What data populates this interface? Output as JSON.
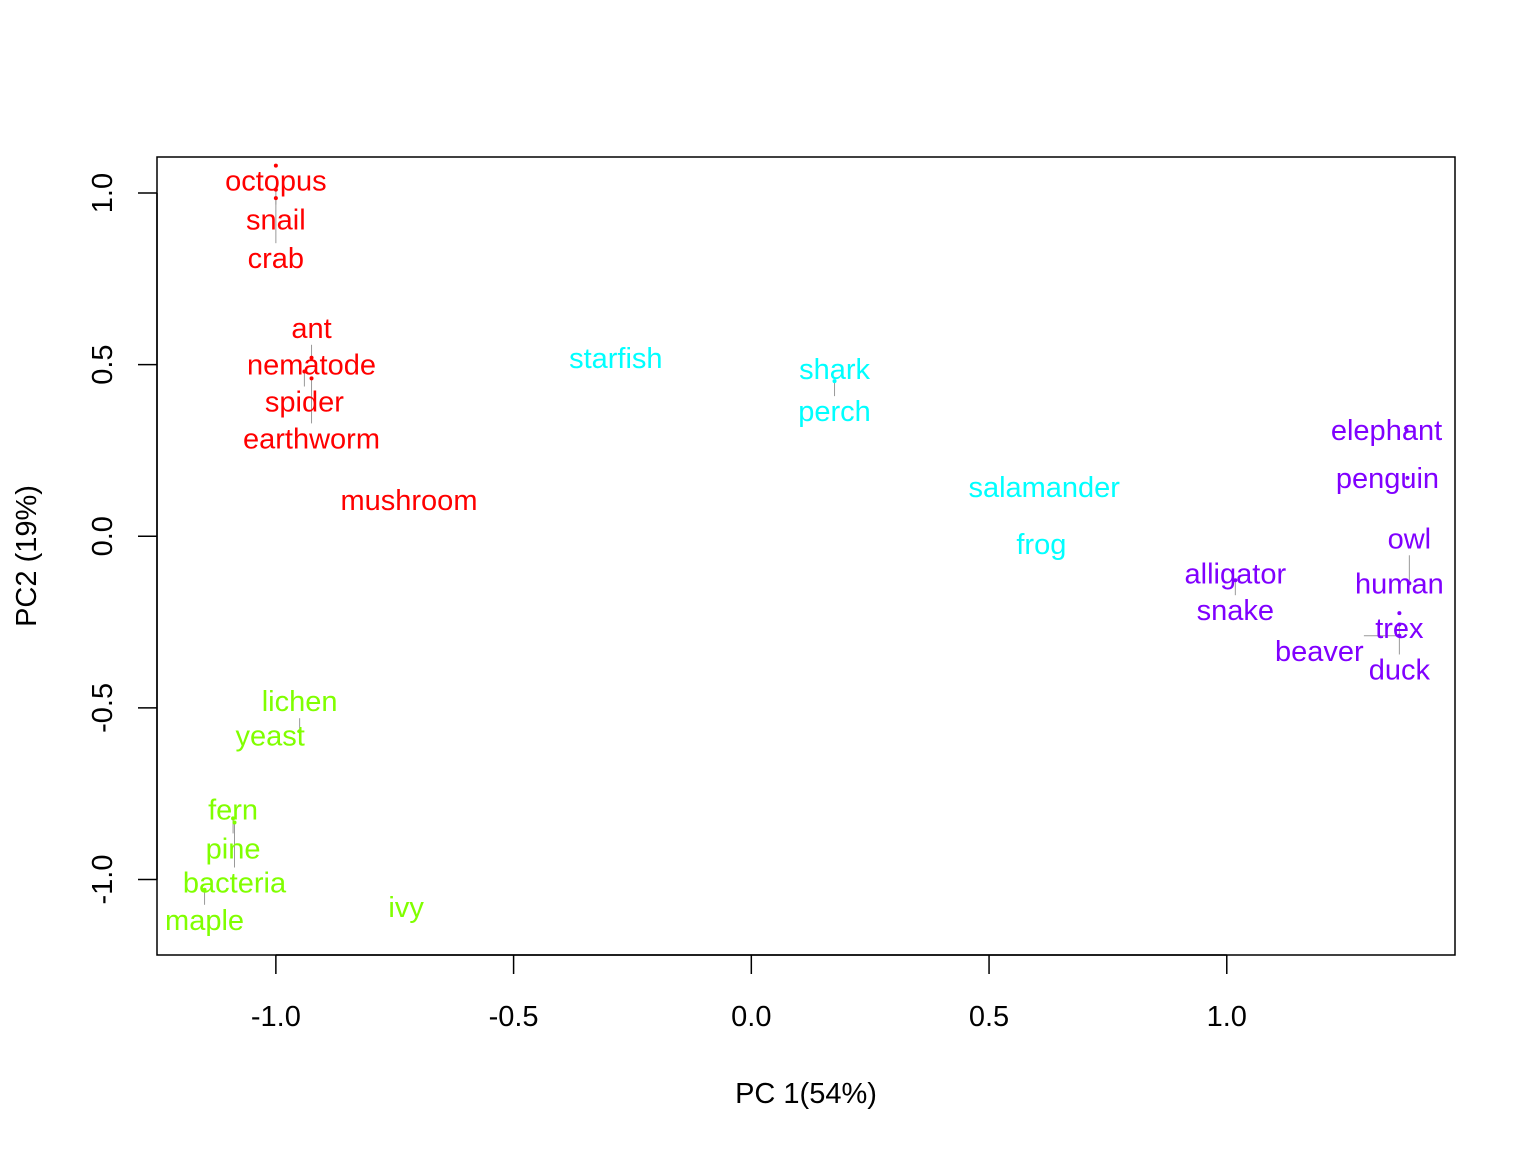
{
  "chart_data": {
    "type": "scatter",
    "title": "",
    "xlabel": "PC 1(54%)",
    "ylabel": "PC2 (19%)",
    "xlim": [
      -1.25,
      1.48
    ],
    "ylim": [
      -1.22,
      1.105
    ],
    "xticks": [
      -1.0,
      -0.5,
      0.0,
      0.5,
      1.0
    ],
    "xtick_labels": [
      "-1.0",
      "-0.5",
      "0.0",
      "0.5",
      "1.0"
    ],
    "yticks": [
      1.0,
      0.5,
      0.0,
      -0.5,
      -1.0
    ],
    "ytick_labels": [
      "1.0",
      "0.5",
      "0.0",
      "-0.5",
      "-1.0"
    ],
    "grid": false,
    "markers": "text labels",
    "group_colors": [
      "#FF0000",
      "#00FFFF",
      "#80FF00",
      "#8000FF"
    ],
    "points": [
      {
        "label": "octopus",
        "x": -1.0,
        "y": 1.08,
        "color": "#FF0000"
      },
      {
        "label": "snail",
        "x": -1.0,
        "y": 1.01,
        "color": "#FF0000"
      },
      {
        "label": "crab",
        "x": -1.0,
        "y": 0.985,
        "color": "#FF0000"
      },
      {
        "label": "nematode",
        "x": -0.925,
        "y": 0.5,
        "color": "#FF0000"
      },
      {
        "label": "ant",
        "x": -0.925,
        "y": 0.52,
        "color": "#FF0000"
      },
      {
        "label": "spider",
        "x": -0.94,
        "y": 0.48,
        "color": "#FF0000"
      },
      {
        "label": "earthworm",
        "x": -0.925,
        "y": 0.46,
        "color": "#FF0000"
      },
      {
        "label": "mushroom",
        "x": -0.72,
        "y": 0.105,
        "color": "#FF0000"
      },
      {
        "label": "starfish",
        "x": -0.285,
        "y": 0.52,
        "color": "#00FFFF"
      },
      {
        "label": "shark",
        "x": 0.175,
        "y": 0.487,
        "color": "#00FFFF"
      },
      {
        "label": "perch",
        "x": 0.175,
        "y": 0.452,
        "color": "#00FFFF"
      },
      {
        "label": "salamander",
        "x": 0.616,
        "y": 0.143,
        "color": "#00FFFF"
      },
      {
        "label": "frog",
        "x": 0.61,
        "y": -0.023,
        "color": "#00FFFF"
      },
      {
        "label": "alligator",
        "x": 1.018,
        "y": -0.108,
        "color": "#8000FF"
      },
      {
        "label": "snake",
        "x": 1.018,
        "y": -0.128,
        "color": "#8000FF"
      },
      {
        "label": "elephant",
        "x": 1.378,
        "y": 0.31,
        "color": "#8000FF"
      },
      {
        "label": "penguin",
        "x": 1.38,
        "y": 0.17,
        "color": "#8000FF"
      },
      {
        "label": "human",
        "x": 1.363,
        "y": -0.137,
        "color": "#8000FF"
      },
      {
        "label": "owl",
        "x": 1.384,
        "y": -0.137,
        "color": "#8000FF"
      },
      {
        "label": "trex",
        "x": 1.363,
        "y": -0.224,
        "color": "#8000FF"
      },
      {
        "label": "duck",
        "x": 1.363,
        "y": -0.257,
        "color": "#8000FF"
      },
      {
        "label": "beaver",
        "x": 1.363,
        "y": -0.29,
        "color": "#8000FF"
      },
      {
        "label": "yeast",
        "x": -1.012,
        "y": -0.58,
        "color": "#80FF00"
      },
      {
        "label": "lichen",
        "x": -0.95,
        "y": -0.568,
        "color": "#80FF00"
      },
      {
        "label": "fern",
        "x": -1.09,
        "y": -0.796,
        "color": "#80FF00"
      },
      {
        "label": "pine",
        "x": -1.09,
        "y": -0.822,
        "color": "#80FF00"
      },
      {
        "label": "bacteria",
        "x": -1.087,
        "y": -0.834,
        "color": "#80FF00"
      },
      {
        "label": "maple",
        "x": -1.15,
        "y": -1.03,
        "color": "#80FF00"
      },
      {
        "label": "ivy",
        "x": -0.726,
        "y": -1.08,
        "color": "#80FF00"
      }
    ]
  }
}
